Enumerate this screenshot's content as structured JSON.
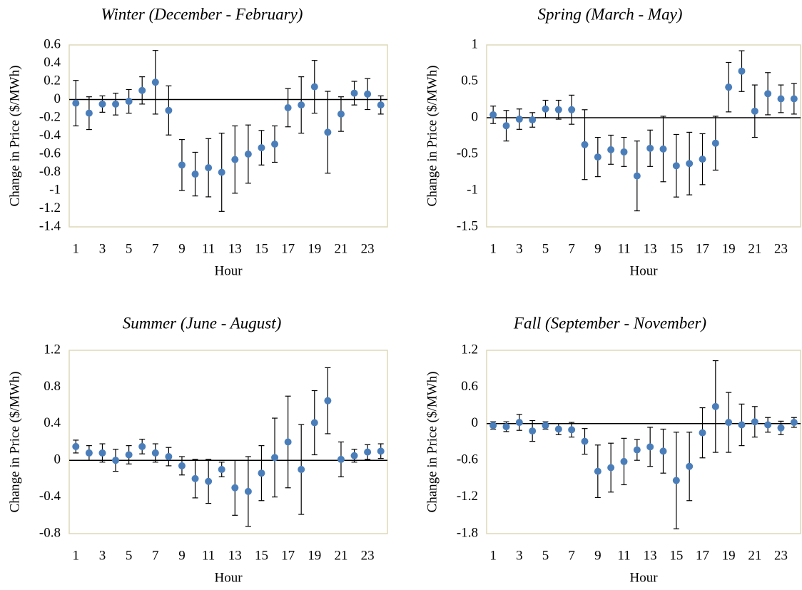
{
  "chart_data": [
    {
      "type": "scatter",
      "title": "Winter (December - February)",
      "xlabel": "Hour",
      "ylabel": "Change in Price ($/MWh)",
      "color": "#4a7ebb",
      "grid": false,
      "x": [
        1,
        2,
        3,
        4,
        5,
        6,
        7,
        8,
        9,
        10,
        11,
        12,
        13,
        14,
        15,
        16,
        17,
        18,
        19,
        20,
        21,
        22,
        23,
        24
      ],
      "values": [
        -0.04,
        -0.15,
        -0.05,
        -0.05,
        -0.02,
        0.1,
        0.19,
        -0.12,
        -0.72,
        -0.82,
        -0.75,
        -0.8,
        -0.66,
        -0.6,
        -0.53,
        -0.49,
        -0.09,
        -0.06,
        0.14,
        -0.36,
        -0.16,
        0.07,
        0.06,
        -0.06
      ],
      "errors": [
        0.25,
        0.18,
        0.09,
        0.12,
        0.13,
        0.15,
        0.35,
        0.27,
        0.28,
        0.24,
        0.32,
        0.43,
        0.37,
        0.32,
        0.19,
        0.2,
        0.21,
        0.31,
        0.29,
        0.45,
        0.19,
        0.13,
        0.17,
        0.1
      ],
      "xlim": [
        0.5,
        24.5
      ],
      "xticks": [
        1,
        3,
        5,
        7,
        9,
        11,
        13,
        15,
        17,
        19,
        21,
        23
      ],
      "ylim": [
        -1.4,
        0.6
      ],
      "yticks": [
        -1.4,
        -1.2,
        -1,
        -0.8,
        -0.6,
        -0.4,
        -0.2,
        0,
        0.2,
        0.4,
        0.6
      ]
    },
    {
      "type": "scatter",
      "title": "Spring (March - May)",
      "xlabel": "Hour",
      "ylabel": "Change in Price ($/MWh)",
      "color": "#4a7ebb",
      "grid": false,
      "x": [
        1,
        2,
        3,
        4,
        5,
        6,
        7,
        8,
        9,
        10,
        11,
        12,
        13,
        14,
        15,
        16,
        17,
        18,
        19,
        20,
        21,
        22,
        23,
        24
      ],
      "values": [
        0.04,
        -0.11,
        -0.02,
        -0.03,
        0.12,
        0.11,
        0.11,
        -0.37,
        -0.54,
        -0.44,
        -0.47,
        -0.8,
        -0.42,
        -0.43,
        -0.66,
        -0.63,
        -0.57,
        -0.35,
        0.42,
        0.64,
        0.09,
        0.33,
        0.26,
        0.26
      ],
      "errors": [
        0.12,
        0.21,
        0.14,
        0.1,
        0.12,
        0.13,
        0.2,
        0.48,
        0.27,
        0.2,
        0.2,
        0.48,
        0.25,
        0.45,
        0.43,
        0.43,
        0.35,
        0.37,
        0.34,
        0.28,
        0.36,
        0.29,
        0.19,
        0.21
      ],
      "xlim": [
        0.5,
        24.5
      ],
      "xticks": [
        1,
        3,
        5,
        7,
        9,
        11,
        13,
        15,
        17,
        19,
        21,
        23
      ],
      "ylim": [
        -1.5,
        1
      ],
      "yticks": [
        -1.5,
        -1,
        -0.5,
        0,
        0.5,
        1
      ]
    },
    {
      "type": "scatter",
      "title": "Summer (June - August)",
      "xlabel": "Hour",
      "ylabel": "Change in Price ($/MWh)",
      "color": "#4a7ebb",
      "grid": false,
      "x": [
        1,
        2,
        3,
        4,
        5,
        6,
        7,
        8,
        9,
        10,
        11,
        12,
        13,
        14,
        15,
        16,
        17,
        18,
        19,
        20,
        21,
        22,
        23,
        24
      ],
      "values": [
        0.15,
        0.08,
        0.08,
        0,
        0.06,
        0.15,
        0.08,
        0.04,
        -0.06,
        -0.2,
        -0.23,
        -0.1,
        -0.3,
        -0.34,
        -0.14,
        0.03,
        0.2,
        -0.1,
        0.41,
        0.65,
        0.01,
        0.05,
        0.09,
        0.1
      ],
      "errors": [
        0.07,
        0.08,
        0.1,
        0.12,
        0.1,
        0.08,
        0.1,
        0.1,
        0.1,
        0.21,
        0.24,
        0.08,
        0.3,
        0.38,
        0.3,
        0.43,
        0.5,
        0.49,
        0.35,
        0.36,
        0.19,
        0.07,
        0.08,
        0.08
      ],
      "xlim": [
        0.5,
        24.5
      ],
      "xticks": [
        1,
        3,
        5,
        7,
        9,
        11,
        13,
        15,
        17,
        19,
        21,
        23
      ],
      "ylim": [
        -0.8,
        1.2
      ],
      "yticks": [
        -0.8,
        -0.4,
        0,
        0.4,
        0.8,
        1.2
      ]
    },
    {
      "type": "scatter",
      "title": "Fall (September - November)",
      "xlabel": "Hour",
      "ylabel": "Change in Price ($/MWh)",
      "color": "#4a7ebb",
      "grid": false,
      "x": [
        1,
        2,
        3,
        4,
        5,
        6,
        7,
        8,
        9,
        10,
        11,
        12,
        13,
        14,
        15,
        16,
        17,
        18,
        19,
        20,
        21,
        22,
        23,
        24
      ],
      "values": [
        -0.03,
        -0.05,
        0.02,
        -0.12,
        -0.03,
        -0.09,
        -0.1,
        -0.29,
        -0.78,
        -0.72,
        -0.62,
        -0.43,
        -0.38,
        -0.45,
        -0.93,
        -0.7,
        -0.15,
        0.28,
        0.02,
        -0.02,
        0.03,
        -0.02,
        -0.07,
        0.02
      ],
      "errors": [
        0.06,
        0.08,
        0.13,
        0.17,
        0.06,
        0.09,
        0.12,
        0.21,
        0.43,
        0.4,
        0.38,
        0.17,
        0.32,
        0.36,
        0.79,
        0.56,
        0.41,
        0.75,
        0.49,
        0.34,
        0.25,
        0.12,
        0.11,
        0.08
      ],
      "xlim": [
        0.5,
        24.5
      ],
      "xticks": [
        1,
        3,
        5,
        7,
        9,
        11,
        13,
        15,
        17,
        19,
        21,
        23
      ],
      "ylim": [
        -1.8,
        1.2
      ],
      "yticks": [
        -1.8,
        -1.2,
        -0.6,
        0,
        0.6,
        1.2
      ]
    }
  ]
}
